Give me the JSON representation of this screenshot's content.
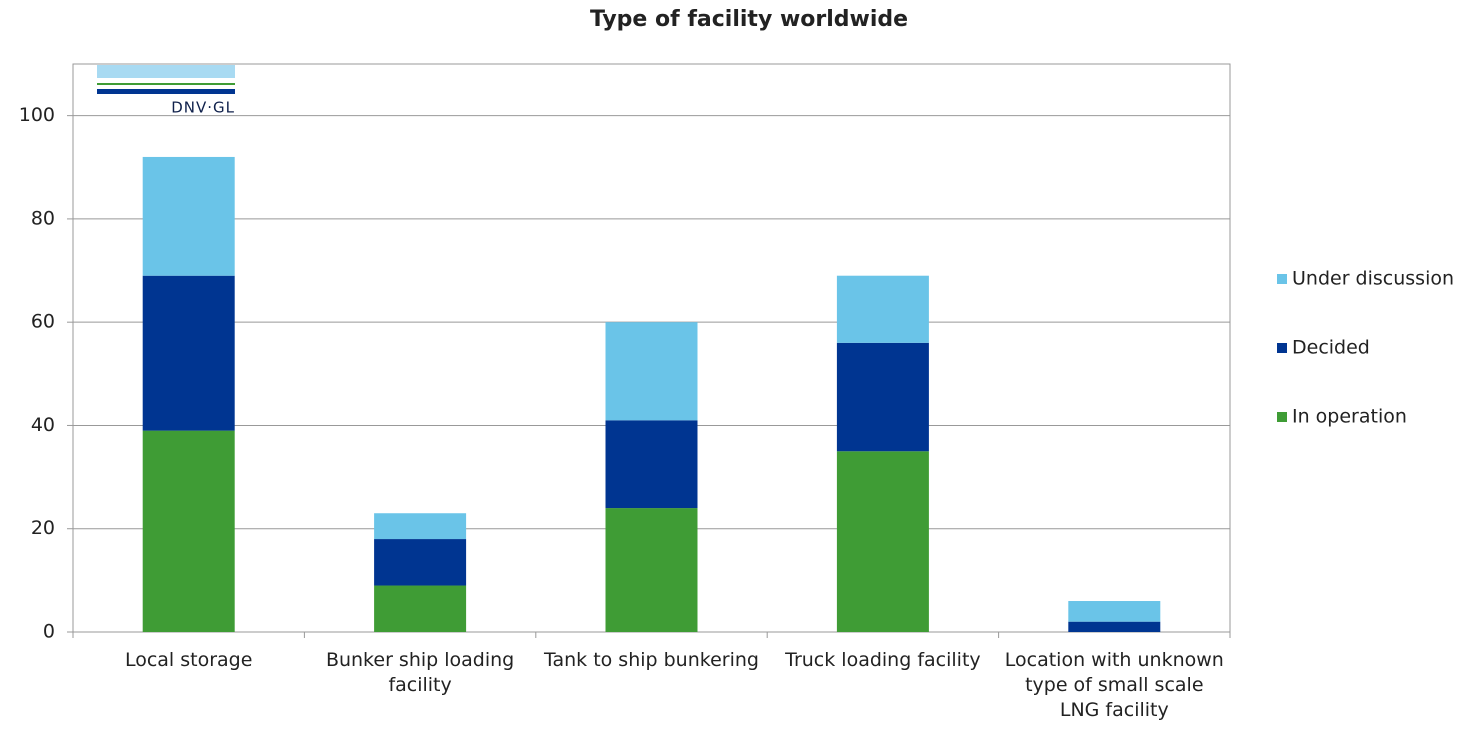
{
  "chart_data": {
    "type": "stacked_bar",
    "title": "Type of facility worldwide",
    "logo": "DNV·GL",
    "categories": [
      "Local storage",
      "Bunker ship loading facility",
      "Tank to ship bunkering",
      "Truck loading facility",
      "Location with unknown type of small scale LNG facility"
    ],
    "series": [
      {
        "name": "In operation",
        "color": "#3f9c35",
        "values": [
          39,
          9,
          24,
          35,
          0
        ]
      },
      {
        "name": "Decided",
        "color": "#003591",
        "values": [
          30,
          9,
          17,
          21,
          2
        ]
      },
      {
        "name": "Under discussion",
        "color": "#6ac4e8",
        "values": [
          23,
          5,
          19,
          13,
          4
        ]
      }
    ],
    "ylim": [
      0,
      110
    ],
    "yticks": [
      0,
      20,
      40,
      60,
      80,
      100
    ],
    "grid": true,
    "legend": "right"
  }
}
